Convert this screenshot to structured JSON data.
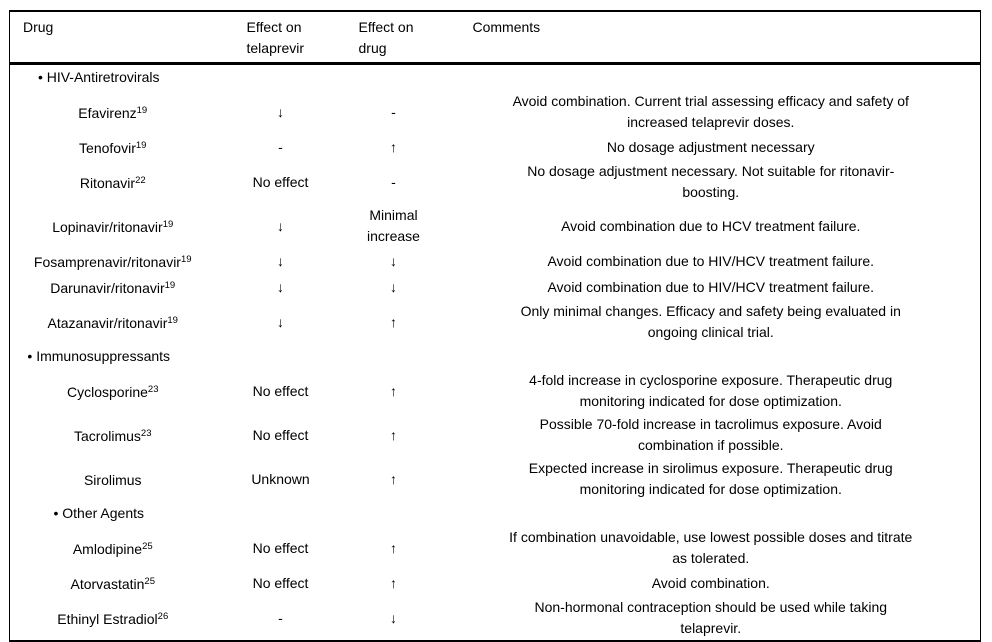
{
  "table": {
    "headers": {
      "drug": "Drug",
      "effect_on_telaprevir": "Effect on\ntelaprevir",
      "effect_on_drug": "Effect on\ndrug",
      "comments": "Comments"
    },
    "rows": [
      {
        "type": "section",
        "label": "• HIV-Antiretrovirals"
      },
      {
        "type": "drug",
        "name": "Efavirenz",
        "ref": "19",
        "effect_on_telaprevir": "↓",
        "effect_on_drug": "-",
        "comment": "Avoid combination. Current trial assessing efficacy and safety of\nincreased telaprevir doses."
      },
      {
        "type": "drug",
        "name": "Tenofovir",
        "ref": "19",
        "effect_on_telaprevir": "-",
        "effect_on_drug": "↑",
        "comment": "No dosage adjustment necessary"
      },
      {
        "type": "drug",
        "name": "Ritonavir",
        "ref": "22",
        "effect_on_telaprevir": "No effect",
        "effect_on_drug": "-",
        "comment": "No dosage adjustment necessary. Not suitable for ritonavir-\nboosting."
      },
      {
        "type": "drug",
        "name": "Lopinavir/ritonavir",
        "ref": "19",
        "effect_on_telaprevir": "↓",
        "effect_on_drug": "Minimal\nincrease",
        "comment": "Avoid combination due to HCV treatment failure."
      },
      {
        "type": "drug",
        "name": "Fosamprenavir/ritonavir",
        "ref": "19",
        "effect_on_telaprevir": "↓",
        "effect_on_drug": "↓",
        "comment": "Avoid combination due to HIV/HCV treatment failure."
      },
      {
        "type": "drug",
        "name": "Darunavir/ritonavir",
        "ref": "19",
        "effect_on_telaprevir": "↓",
        "effect_on_drug": "↓",
        "comment": "Avoid combination due to HIV/HCV treatment failure."
      },
      {
        "type": "drug",
        "name": "Atazanavir/ritonavir",
        "ref": "19",
        "effect_on_telaprevir": "↓",
        "effect_on_drug": "↑",
        "comment": "Only minimal changes. Efficacy and safety being evaluated in\nongoing clinical trial."
      },
      {
        "type": "section",
        "label": "• Immunosuppressants"
      },
      {
        "type": "drug",
        "name": "Cyclosporine",
        "ref": "23",
        "effect_on_telaprevir": "No effect",
        "effect_on_drug": "↑",
        "comment": "4-fold increase in cyclosporine exposure. Therapeutic drug\nmonitoring indicated for dose optimization."
      },
      {
        "type": "drug",
        "name": "Tacrolimus",
        "ref": "23",
        "effect_on_telaprevir": "No effect",
        "effect_on_drug": "↑",
        "comment": "Possible 70-fold increase in tacrolimus exposure. Avoid\ncombination if possible."
      },
      {
        "type": "drug",
        "name": "Sirolimus",
        "ref": "",
        "effect_on_telaprevir": "Unknown",
        "effect_on_drug": "↑",
        "comment": "Expected increase in sirolimus exposure. Therapeutic drug\nmonitoring indicated for dose optimization."
      },
      {
        "type": "section",
        "label": "• Other Agents"
      },
      {
        "type": "drug",
        "name": "Amlodipine",
        "ref": "25",
        "effect_on_telaprevir": "No effect",
        "effect_on_drug": "↑",
        "comment": "If combination unavoidable, use lowest possible doses and titrate\nas tolerated."
      },
      {
        "type": "drug",
        "name": "Atorvastatin",
        "ref": "25",
        "effect_on_telaprevir": "No effect",
        "effect_on_drug": "↑",
        "comment": "Avoid combination."
      },
      {
        "type": "drug",
        "name": "Ethinyl Estradiol",
        "ref": "26",
        "effect_on_telaprevir": "-",
        "effect_on_drug": "↓",
        "comment": "Non-hormonal contraception should be used while taking\ntelaprevir."
      }
    ]
  }
}
